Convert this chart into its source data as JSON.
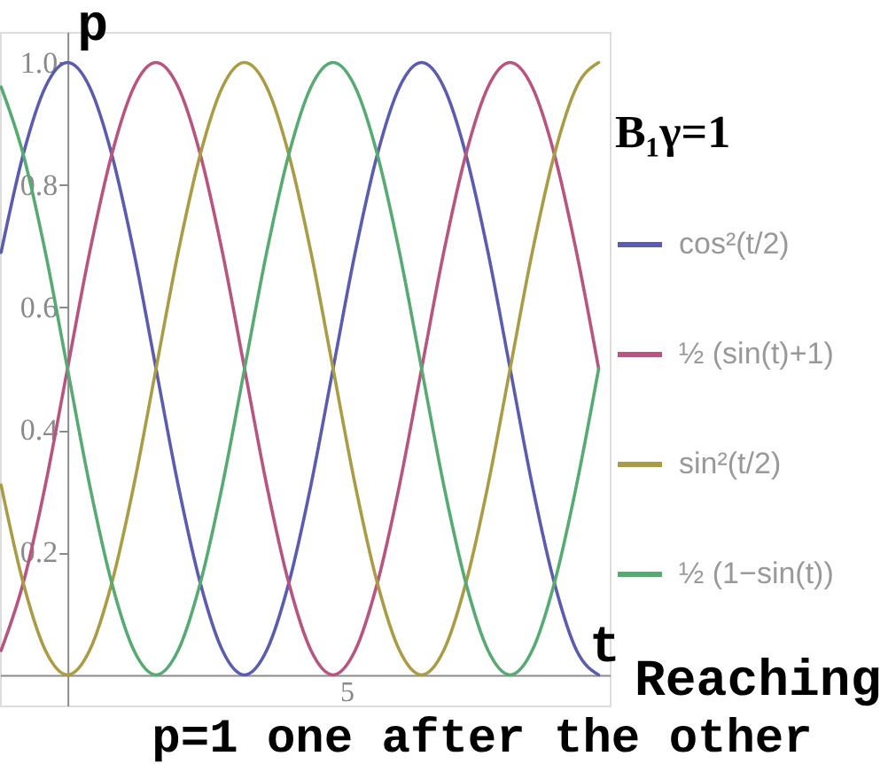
{
  "chart_data": {
    "type": "line",
    "xlabel": "t",
    "ylabel": "p",
    "legend_title": "B₁γ=1",
    "annotations": [
      "Reaching",
      "5",
      "p=1 one after the other"
    ],
    "categories": [
      null,
      null,
      null,
      null,
      null,
      null,
      null,
      null,
      null,
      null,
      null,
      null,
      null,
      null,
      null,
      null,
      null,
      null,
      null,
      null,
      null,
      null,
      null,
      null,
      null,
      null,
      null,
      null
    ],
    "series": [
      {
        "name": "cos²(t/2)",
        "color": "#5b5bb0",
        "values": [
          0.69,
          0.85,
          0.96,
          1,
          0.96,
          0.85,
          0.69,
          0.5,
          0.31,
          0.15,
          0.04,
          0,
          0.04,
          0.15,
          0.31,
          0.5,
          0.69,
          0.85,
          0.96,
          1,
          0.96,
          0.85,
          0.69,
          0.5,
          0.31,
          0.15,
          0.04,
          0
        ]
      },
      {
        "name": "½ (sin(t)+1)",
        "color": "#b85480",
        "values": [
          0.04,
          0.15,
          0.31,
          0.5,
          0.69,
          0.85,
          0.96,
          1,
          0.96,
          0.85,
          0.69,
          0.5,
          0.31,
          0.15,
          0.04,
          0,
          0.04,
          0.15,
          0.31,
          0.5,
          0.69,
          0.85,
          0.96,
          1,
          0.96,
          0.85,
          0.69,
          0.5
        ]
      },
      {
        "name": "sin²(t/2)",
        "color": "#aa9b45",
        "values": [
          0.31,
          0.15,
          0.04,
          0,
          0.04,
          0.15,
          0.31,
          0.5,
          0.69,
          0.85,
          0.96,
          1,
          0.96,
          0.85,
          0.69,
          0.5,
          0.31,
          0.15,
          0.04,
          0,
          0.04,
          0.15,
          0.31,
          0.5,
          0.69,
          0.85,
          0.96,
          1
        ]
      },
      {
        "name": "½ (1−sin(t))",
        "color": "#57aa72",
        "values": [
          0.96,
          0.85,
          0.69,
          0.5,
          0.31,
          0.15,
          0.04,
          0,
          0.04,
          0.15,
          0.31,
          0.5,
          0.69,
          0.85,
          0.96,
          1,
          0.96,
          0.85,
          0.69,
          0.5,
          0.31,
          0.15,
          0.04,
          0,
          0.04,
          0.15,
          0.31,
          0.5
        ]
      }
    ],
    "ylim": [
      -0.05,
      1.05
    ],
    "yticks": [
      {
        "value": 0.2,
        "label": "0.2"
      },
      {
        "value": 0.4,
        "label": "0.4"
      },
      {
        "value": 0.6,
        "label": "0.6"
      },
      {
        "value": 0.8,
        "label": "0.8"
      },
      {
        "value": 1,
        "label": "1.0"
      }
    ],
    "legend": "right",
    "line_style": "solid"
  }
}
